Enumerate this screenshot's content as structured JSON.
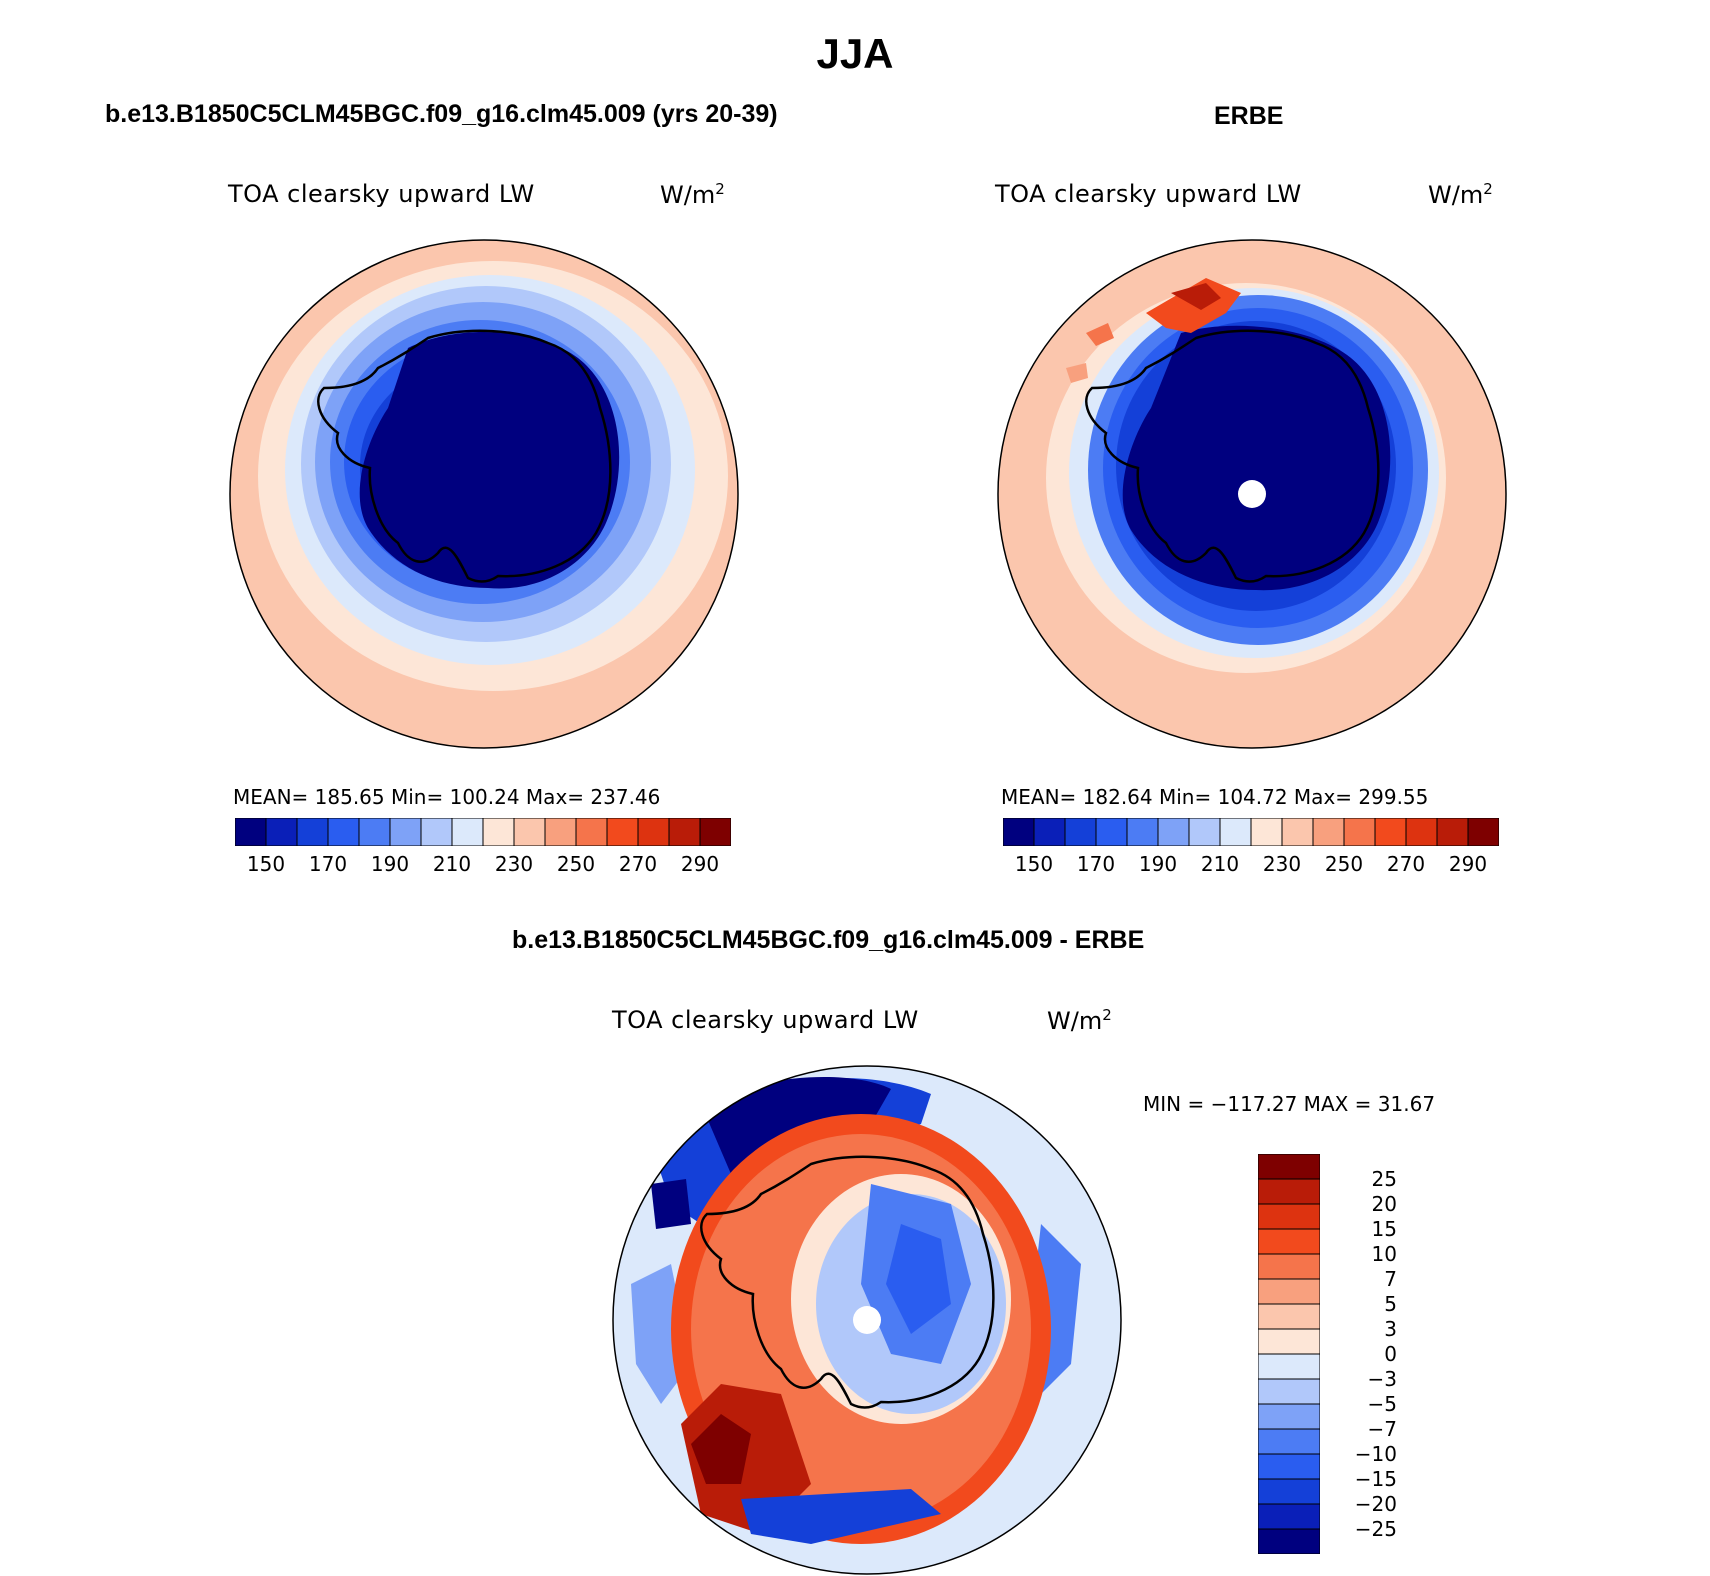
{
  "figure": {
    "title": "JJA",
    "variable_label": "TOA clearsky upward LW",
    "units_base": "W/m",
    "units_exp": "2"
  },
  "colors": {
    "abs_scale": [
      "#00007f",
      "#0a1fb8",
      "#1440d8",
      "#2a5df0",
      "#4c7cf4",
      "#7ea2f7",
      "#b1c8fa",
      "#dce9fb",
      "#fde6d7",
      "#fbc6ad",
      "#f8a07e",
      "#f5744b",
      "#f24a1d",
      "#dd3310",
      "#b91c08",
      "#7e0000"
    ],
    "diff_scale": [
      "#00007f",
      "#0a1fb8",
      "#1440d8",
      "#2a5df0",
      "#4c7cf4",
      "#7ea2f7",
      "#b1c8fa",
      "#dce9fb",
      "#fde6d7",
      "#fbc6ad",
      "#f8a07e",
      "#f5744b",
      "#f24a1d",
      "#dd3310",
      "#b91c08",
      "#7e0000"
    ]
  },
  "panels": {
    "model": {
      "title": "b.e13.B1850C5CLM45BGC.f09_g16.clm45.009 (yrs 20-39)",
      "stats_text": "MEAN= 185.65   Min= 100.24   Max= 237.46",
      "colorbar_ticks": [
        "150",
        "170",
        "190",
        "210",
        "230",
        "250",
        "270",
        "290"
      ]
    },
    "obs": {
      "title": "ERBE",
      "stats_text": "MEAN= 182.64   Min= 104.72   Max= 299.55",
      "colorbar_ticks": [
        "150",
        "170",
        "190",
        "210",
        "230",
        "250",
        "270",
        "290"
      ]
    },
    "diff": {
      "title": "b.e13.B1850C5CLM45BGC.f09_g16.clm45.009 - ERBE",
      "stats_text": "MIN = −117.27 MAX =   31.67",
      "colorbar_ticks": [
        "25",
        "20",
        "15",
        "10",
        "7",
        "5",
        "3",
        "0",
        "−3",
        "−5",
        "−7",
        "−10",
        "−15",
        "−20",
        "−25"
      ]
    }
  }
}
